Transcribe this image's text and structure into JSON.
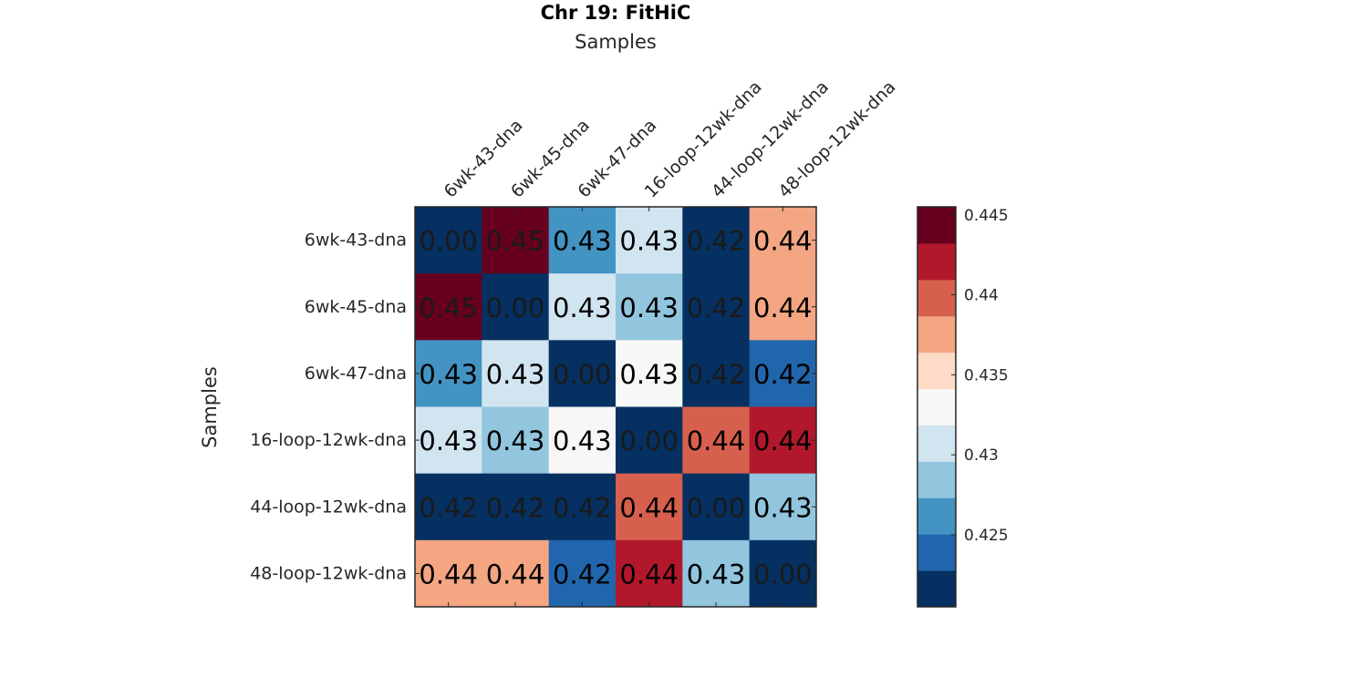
{
  "chart_data": {
    "type": "heatmap",
    "title": "Chr 19: FitHiC",
    "xlabel": "Samples",
    "ylabel": "Samples",
    "categories": [
      "6wk-43-dna",
      "6wk-45-dna",
      "6wk-47-dna",
      "16-loop-12wk-dna",
      "44-loop-12wk-dna",
      "48-loop-12wk-dna"
    ],
    "values": [
      [
        0.0,
        0.4452,
        0.4268,
        0.431,
        0.42,
        0.4372
      ],
      [
        0.4452,
        0.0,
        0.431,
        0.429,
        0.42,
        0.4372
      ],
      [
        0.4268,
        0.431,
        0.0,
        0.433,
        0.42,
        0.4235
      ],
      [
        0.431,
        0.429,
        0.433,
        0.0,
        0.44,
        0.4425
      ],
      [
        0.42,
        0.42,
        0.42,
        0.44,
        0.0,
        0.429
      ],
      [
        0.4372,
        0.4372,
        0.4235,
        0.4425,
        0.429,
        0.0
      ]
    ],
    "cell_labels": [
      [
        "0.00",
        "0.45",
        "0.43",
        "0.43",
        "0.42",
        "0.44"
      ],
      [
        "0.45",
        "0.00",
        "0.43",
        "0.43",
        "0.42",
        "0.44"
      ],
      [
        "0.43",
        "0.43",
        "0.00",
        "0.43",
        "0.42",
        "0.42"
      ],
      [
        "0.43",
        "0.43",
        "0.43",
        "0.00",
        "0.44",
        "0.44"
      ],
      [
        "0.42",
        "0.42",
        "0.42",
        "0.44",
        "0.00",
        "0.43"
      ],
      [
        "0.44",
        "0.44",
        "0.42",
        "0.44",
        "0.43",
        "0.00"
      ]
    ],
    "colorbar": {
      "range": [
        0.4205,
        0.4455
      ],
      "ticks": [
        0.445,
        0.44,
        0.435,
        0.43,
        0.425
      ],
      "tick_labels": [
        "0.445",
        "0.44",
        "0.435",
        "0.43",
        "0.425"
      ],
      "colors": [
        "#053061",
        "#2166ac",
        "#4393c3",
        "#92c5de",
        "#d1e5f0",
        "#f7f7f7",
        "#fddbc7",
        "#f4a582",
        "#d6604d",
        "#b2182b",
        "#67001f"
      ]
    },
    "grid": false,
    "legend": "right"
  }
}
